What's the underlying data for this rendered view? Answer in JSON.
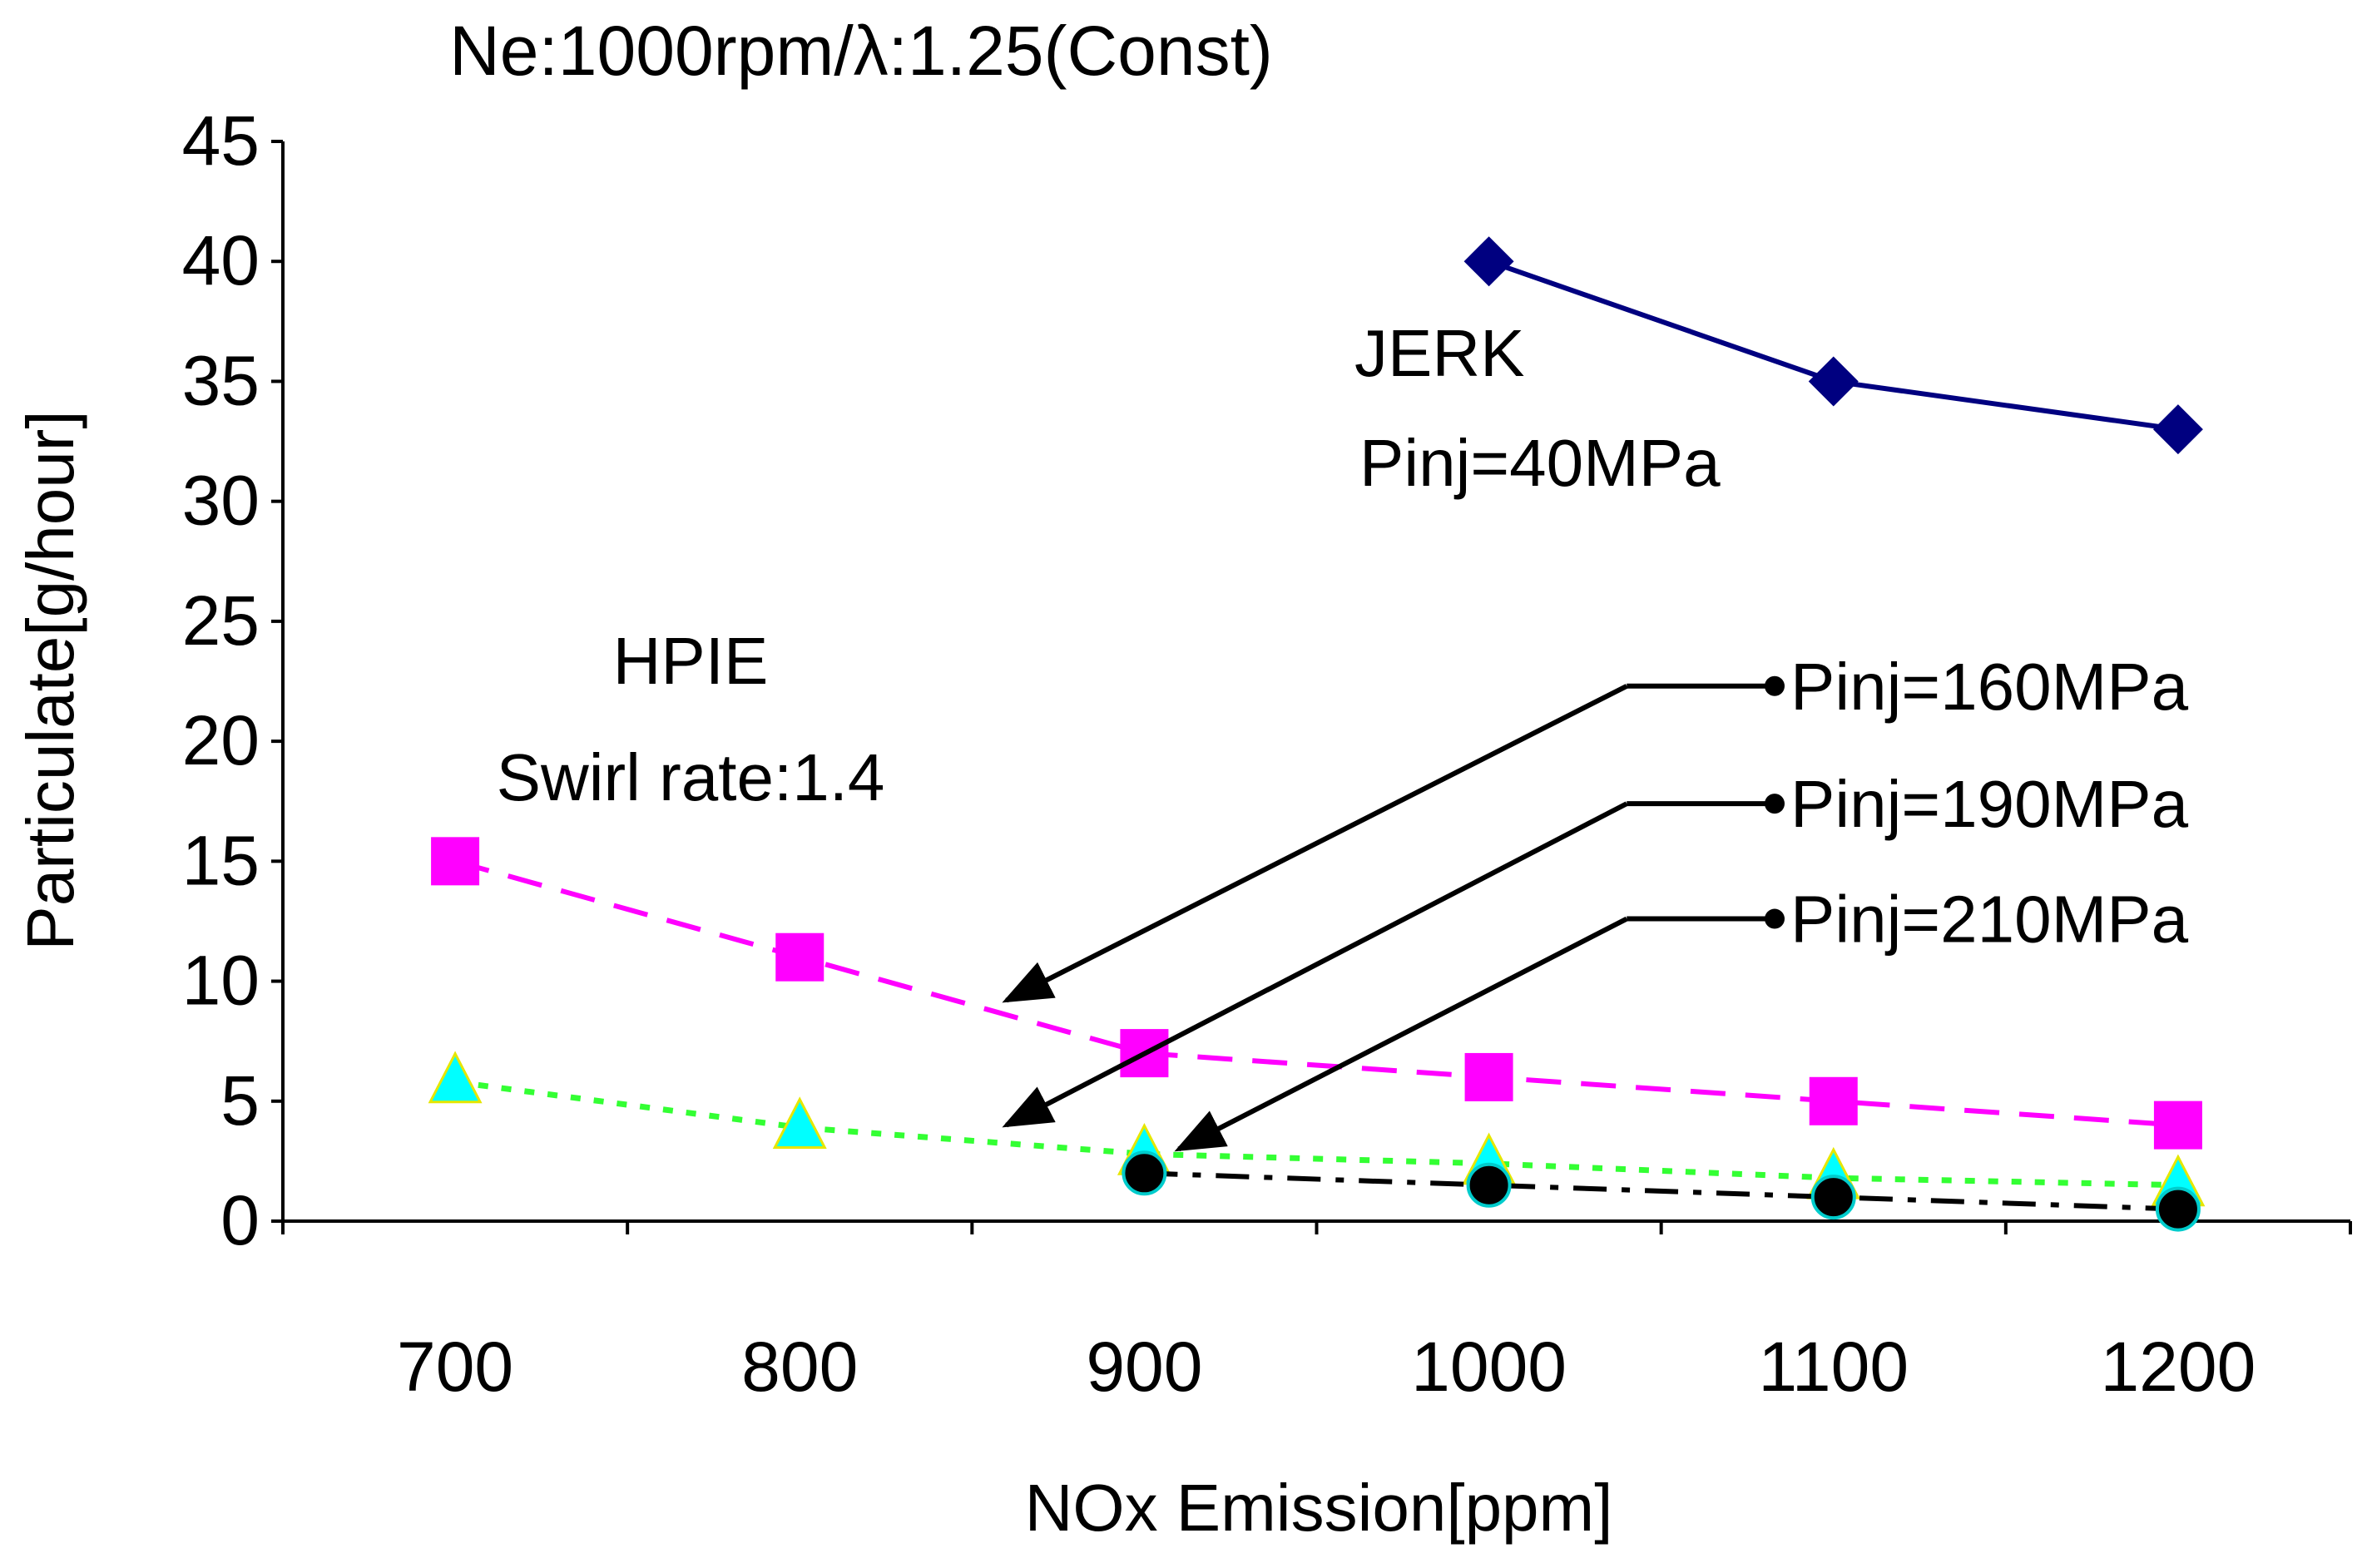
{
  "chart_data": {
    "type": "line",
    "title": "Ne:1000rpm/λ:1.25(Const)",
    "xlabel": "NOx Emission[ppm]",
    "ylabel": "Particulate[g/hour]",
    "xlim": [
      650,
      1250
    ],
    "ylim": [
      0,
      45
    ],
    "x_ticks": [
      700,
      800,
      900,
      1000,
      1100,
      1200
    ],
    "y_ticks": [
      0,
      5,
      10,
      15,
      20,
      25,
      30,
      35,
      40,
      45
    ],
    "series": [
      {
        "name": "JERK Pinj=40MPa",
        "x": [
          1000,
          1100,
          1200
        ],
        "values": [
          40,
          35,
          33
        ],
        "color": "#000080",
        "marker": "diamond",
        "line": "solid"
      },
      {
        "name": "Pinj=160MPa",
        "x": [
          700,
          800,
          900,
          1000,
          1100,
          1200
        ],
        "values": [
          15,
          11,
          7,
          6,
          5,
          4
        ],
        "color": "#ff00ff",
        "marker": "square",
        "line": "dashed"
      },
      {
        "name": "Pinj=190MPa",
        "x": [
          700,
          800,
          900,
          1000,
          1100,
          1200
        ],
        "values": [
          5.8,
          3.9,
          2.8,
          2.4,
          1.8,
          1.5
        ],
        "color": "#00ffff",
        "line_color": "#33ff33",
        "marker": "triangle",
        "line": "dotted"
      },
      {
        "name": "Pinj=210MPa",
        "x": [
          900,
          1000,
          1100,
          1200
        ],
        "values": [
          2.0,
          1.5,
          1.0,
          0.5
        ],
        "color": "#000000",
        "marker": "circle",
        "line": "dashdot"
      }
    ],
    "annotations": [
      {
        "lines": [
          "JERK",
          "Pinj=40MPa"
        ]
      },
      {
        "lines": [
          "HPIE",
          "Swirl rate:1.4"
        ]
      },
      {
        "label": "Pinj=160MPa",
        "target_x": 860,
        "target_y": 9.2,
        "elbow_x": 1040,
        "elbow_y": 22.3
      },
      {
        "label": "Pinj=190MPa",
        "target_x": 860,
        "target_y": 4.0,
        "elbow_x": 1040,
        "elbow_y": 17.4
      },
      {
        "label": "Pinj=210MPa",
        "target_x": 910,
        "target_y": 3.0,
        "elbow_x": 1040,
        "elbow_y": 12.6
      }
    ]
  }
}
